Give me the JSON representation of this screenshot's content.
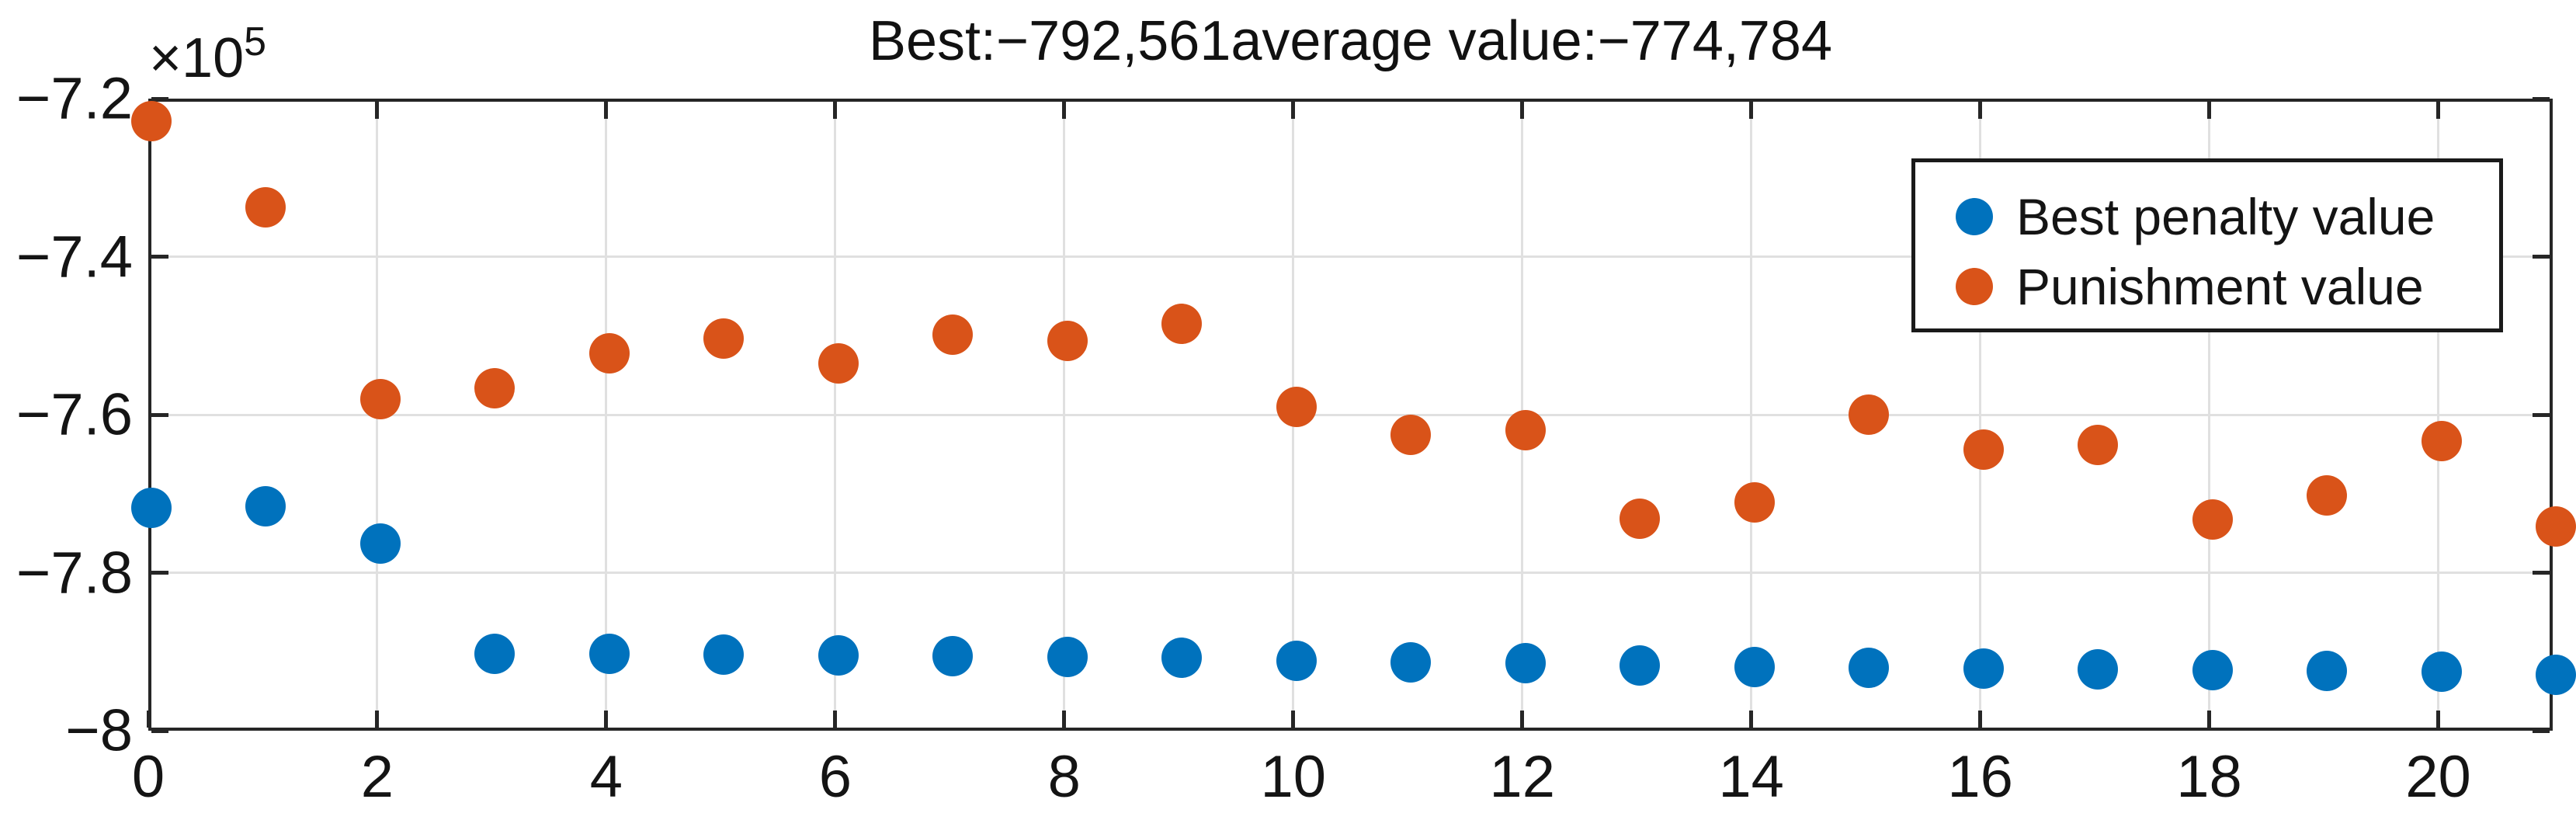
{
  "chart_data": {
    "type": "scatter",
    "title": "Best:−792,561average value:−774,784",
    "y_axis_multiplier": {
      "base": "×10",
      "exponent": "5"
    },
    "xlim": [
      0,
      21
    ],
    "ylim": [
      -8.0,
      -7.2
    ],
    "x_tick_values": [
      0,
      2,
      4,
      6,
      8,
      10,
      12,
      14,
      16,
      18,
      20
    ],
    "x_tick_labels": [
      "0",
      "2",
      "4",
      "6",
      "8",
      "10",
      "12",
      "14",
      "16",
      "18",
      "20"
    ],
    "y_tick_values": [
      -7.2,
      -7.4,
      -7.6,
      -7.8,
      -8.0
    ],
    "y_tick_labels": [
      "−7.2",
      "−7.4",
      "−7.6",
      "−7.8",
      "−8"
    ],
    "y_units": "x100000",
    "grid": true,
    "legend_position": "upper-right",
    "x": [
      0,
      1,
      2,
      3,
      4,
      5,
      6,
      7,
      8,
      9,
      10,
      11,
      12,
      13,
      14,
      15,
      16,
      17,
      18,
      19,
      20,
      21
    ],
    "series": [
      {
        "name": "Best penalty value",
        "color": "#0072BD",
        "marker": "circle",
        "values": [
          -7.714,
          -7.712,
          -7.759,
          -7.899,
          -7.899,
          -7.9,
          -7.901,
          -7.902,
          -7.903,
          -7.904,
          -7.908,
          -7.91,
          -7.911,
          -7.914,
          -7.915,
          -7.916,
          -7.917,
          -7.918,
          -7.919,
          -7.92,
          -7.921,
          -7.925
        ]
      },
      {
        "name": "Punishment value",
        "color": "#D95319",
        "marker": "circle",
        "values": [
          -7.225,
          -7.334,
          -7.576,
          -7.563,
          -7.518,
          -7.5,
          -7.531,
          -7.495,
          -7.503,
          -7.481,
          -7.586,
          -7.622,
          -7.616,
          -7.728,
          -7.707,
          -7.596,
          -7.64,
          -7.634,
          -7.729,
          -7.698,
          -7.629,
          -7.738
        ]
      }
    ],
    "axis_color": "#262626",
    "grid_color": "#e0e0e0"
  }
}
